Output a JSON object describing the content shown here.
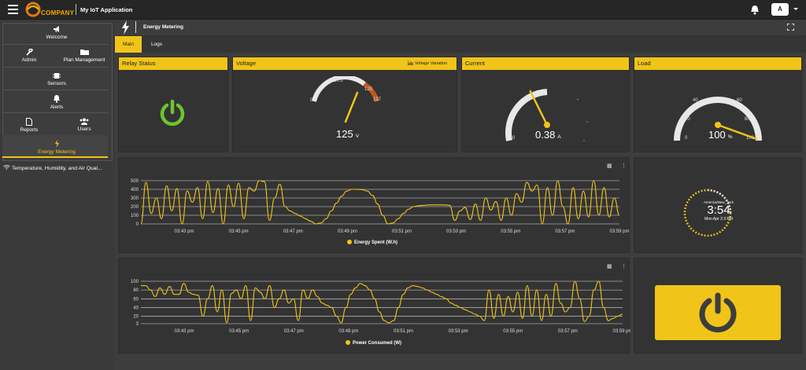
{
  "topbar": {
    "app_title": "My IoT Application",
    "logo_text": "COMPANY",
    "avatar": "A"
  },
  "sidebar": {
    "items": [
      {
        "label": "Welcome",
        "icon": "megaphone-icon"
      },
      {
        "label": "Admin",
        "icon": "wrench-icon"
      },
      {
        "label": "Plan Management",
        "icon": "folder-icon"
      },
      {
        "label": "Sensors",
        "icon": "chip-icon"
      },
      {
        "label": "Alerts",
        "icon": "bell-icon"
      },
      {
        "label": "Reports",
        "icon": "document-icon"
      },
      {
        "label": "Users",
        "icon": "users-icon"
      },
      {
        "label": "Energy Metering",
        "icon": "bolt-icon",
        "active": true
      }
    ],
    "sub_item": "Temperature, Humidity, and Air Qual..."
  },
  "header": {
    "title": "Energy Metering"
  },
  "tabs": [
    {
      "label": "Main",
      "active": true
    },
    {
      "label": "Logs"
    }
  ],
  "cards": {
    "relay": {
      "title": "Relay Status"
    },
    "voltage": {
      "title": "Voltage",
      "link": "Voltage Variation",
      "value": "125",
      "unit": "V",
      "ticks": [
        "0",
        "110.5",
        "125",
        "137"
      ],
      "value_num": 125,
      "min": 0,
      "max": 137
    },
    "current": {
      "title": "Current",
      "value": "0.38",
      "unit": "A",
      "ticks": [
        "0"
      ],
      "value_num": 0.38,
      "max": 1
    },
    "load": {
      "title": "Load",
      "value": "100",
      "unit": "%",
      "ticks": [
        "0",
        "20",
        "40",
        "60",
        "80",
        "100"
      ],
      "value_num": 100,
      "max": 100
    }
  },
  "clock": {
    "timezone": "America/New_York",
    "time": "3:54",
    "date": "Mon Apr 3 3 PM"
  },
  "colors": {
    "accent": "#f0c419",
    "relay_on": "#6cc62c",
    "dark_panel": "#333333"
  },
  "chart_data": [
    {
      "type": "line",
      "series": [
        {
          "name": "Energy Spent (W.h)",
          "values": [
            0,
            480,
            120,
            300,
            60,
            440,
            150,
            410,
            0,
            380,
            250,
            420,
            60,
            490,
            130,
            410,
            0,
            450,
            200,
            470,
            60,
            420,
            380,
            500,
            490,
            40,
            300,
            460,
            200,
            150,
            120,
            90,
            60,
            30,
            0,
            10,
            60,
            150,
            240,
            320,
            380,
            400,
            400,
            395,
            380,
            330,
            230,
            100,
            0,
            10,
            60,
            120,
            170,
            200,
            210,
            215,
            220,
            220,
            220,
            220,
            215,
            40,
            150,
            190,
            50,
            230,
            40,
            300,
            160,
            260,
            40,
            300,
            100,
            350,
            250,
            480,
            380,
            450,
            0,
            420,
            100,
            500,
            200,
            0,
            420,
            60,
            380,
            80,
            500,
            100,
            420,
            80,
            300,
            100
          ]
        }
      ],
      "x_ticks": [
        "03:43 pm",
        "03:45 pm",
        "03:47 pm",
        "03:49 pm",
        "03:51 pm",
        "03:53 pm",
        "03:55 pm",
        "03:57 pm",
        "03:59 pm"
      ],
      "y_ticks": [
        "500",
        "400",
        "300",
        "200",
        "100",
        "0"
      ],
      "ylim": [
        0,
        500
      ],
      "legend": "Energy Spent (W.h)"
    },
    {
      "type": "line",
      "series": [
        {
          "name": "Power Consumed (W)",
          "values": [
            90,
            90,
            80,
            65,
            85,
            70,
            88,
            70,
            70,
            95,
            75,
            70,
            68,
            20,
            60,
            90,
            30,
            80,
            5,
            72,
            80,
            60,
            90,
            10,
            85,
            75,
            60,
            90,
            40,
            60,
            80,
            50,
            60,
            10,
            80,
            60,
            80,
            65,
            50,
            45,
            40,
            20,
            5,
            40,
            70,
            85,
            95,
            90,
            80,
            60,
            30,
            10,
            5,
            10,
            40,
            70,
            85,
            90,
            88,
            85,
            80,
            75,
            70,
            65,
            60,
            50,
            45,
            40,
            35,
            30,
            25,
            20,
            10,
            80,
            15,
            70,
            20,
            65,
            30,
            75,
            15,
            90,
            20,
            80,
            10,
            70,
            20,
            95,
            50,
            30,
            40,
            100,
            60,
            8,
            20,
            80,
            100,
            40,
            10,
            15,
            20,
            25
          ]
        }
      ],
      "x_ticks": [
        "03:43 pm",
        "03:45 pm",
        "03:47 pm",
        "03:49 pm",
        "03:51 pm",
        "03:53 pm",
        "03:55 pm",
        "03:57 pm",
        "03:59 pm"
      ],
      "y_ticks": [
        "100",
        "80",
        "60",
        "40",
        "20",
        "3"
      ],
      "ylim": [
        3,
        100
      ],
      "legend": "Power Consumed (W)"
    }
  ]
}
